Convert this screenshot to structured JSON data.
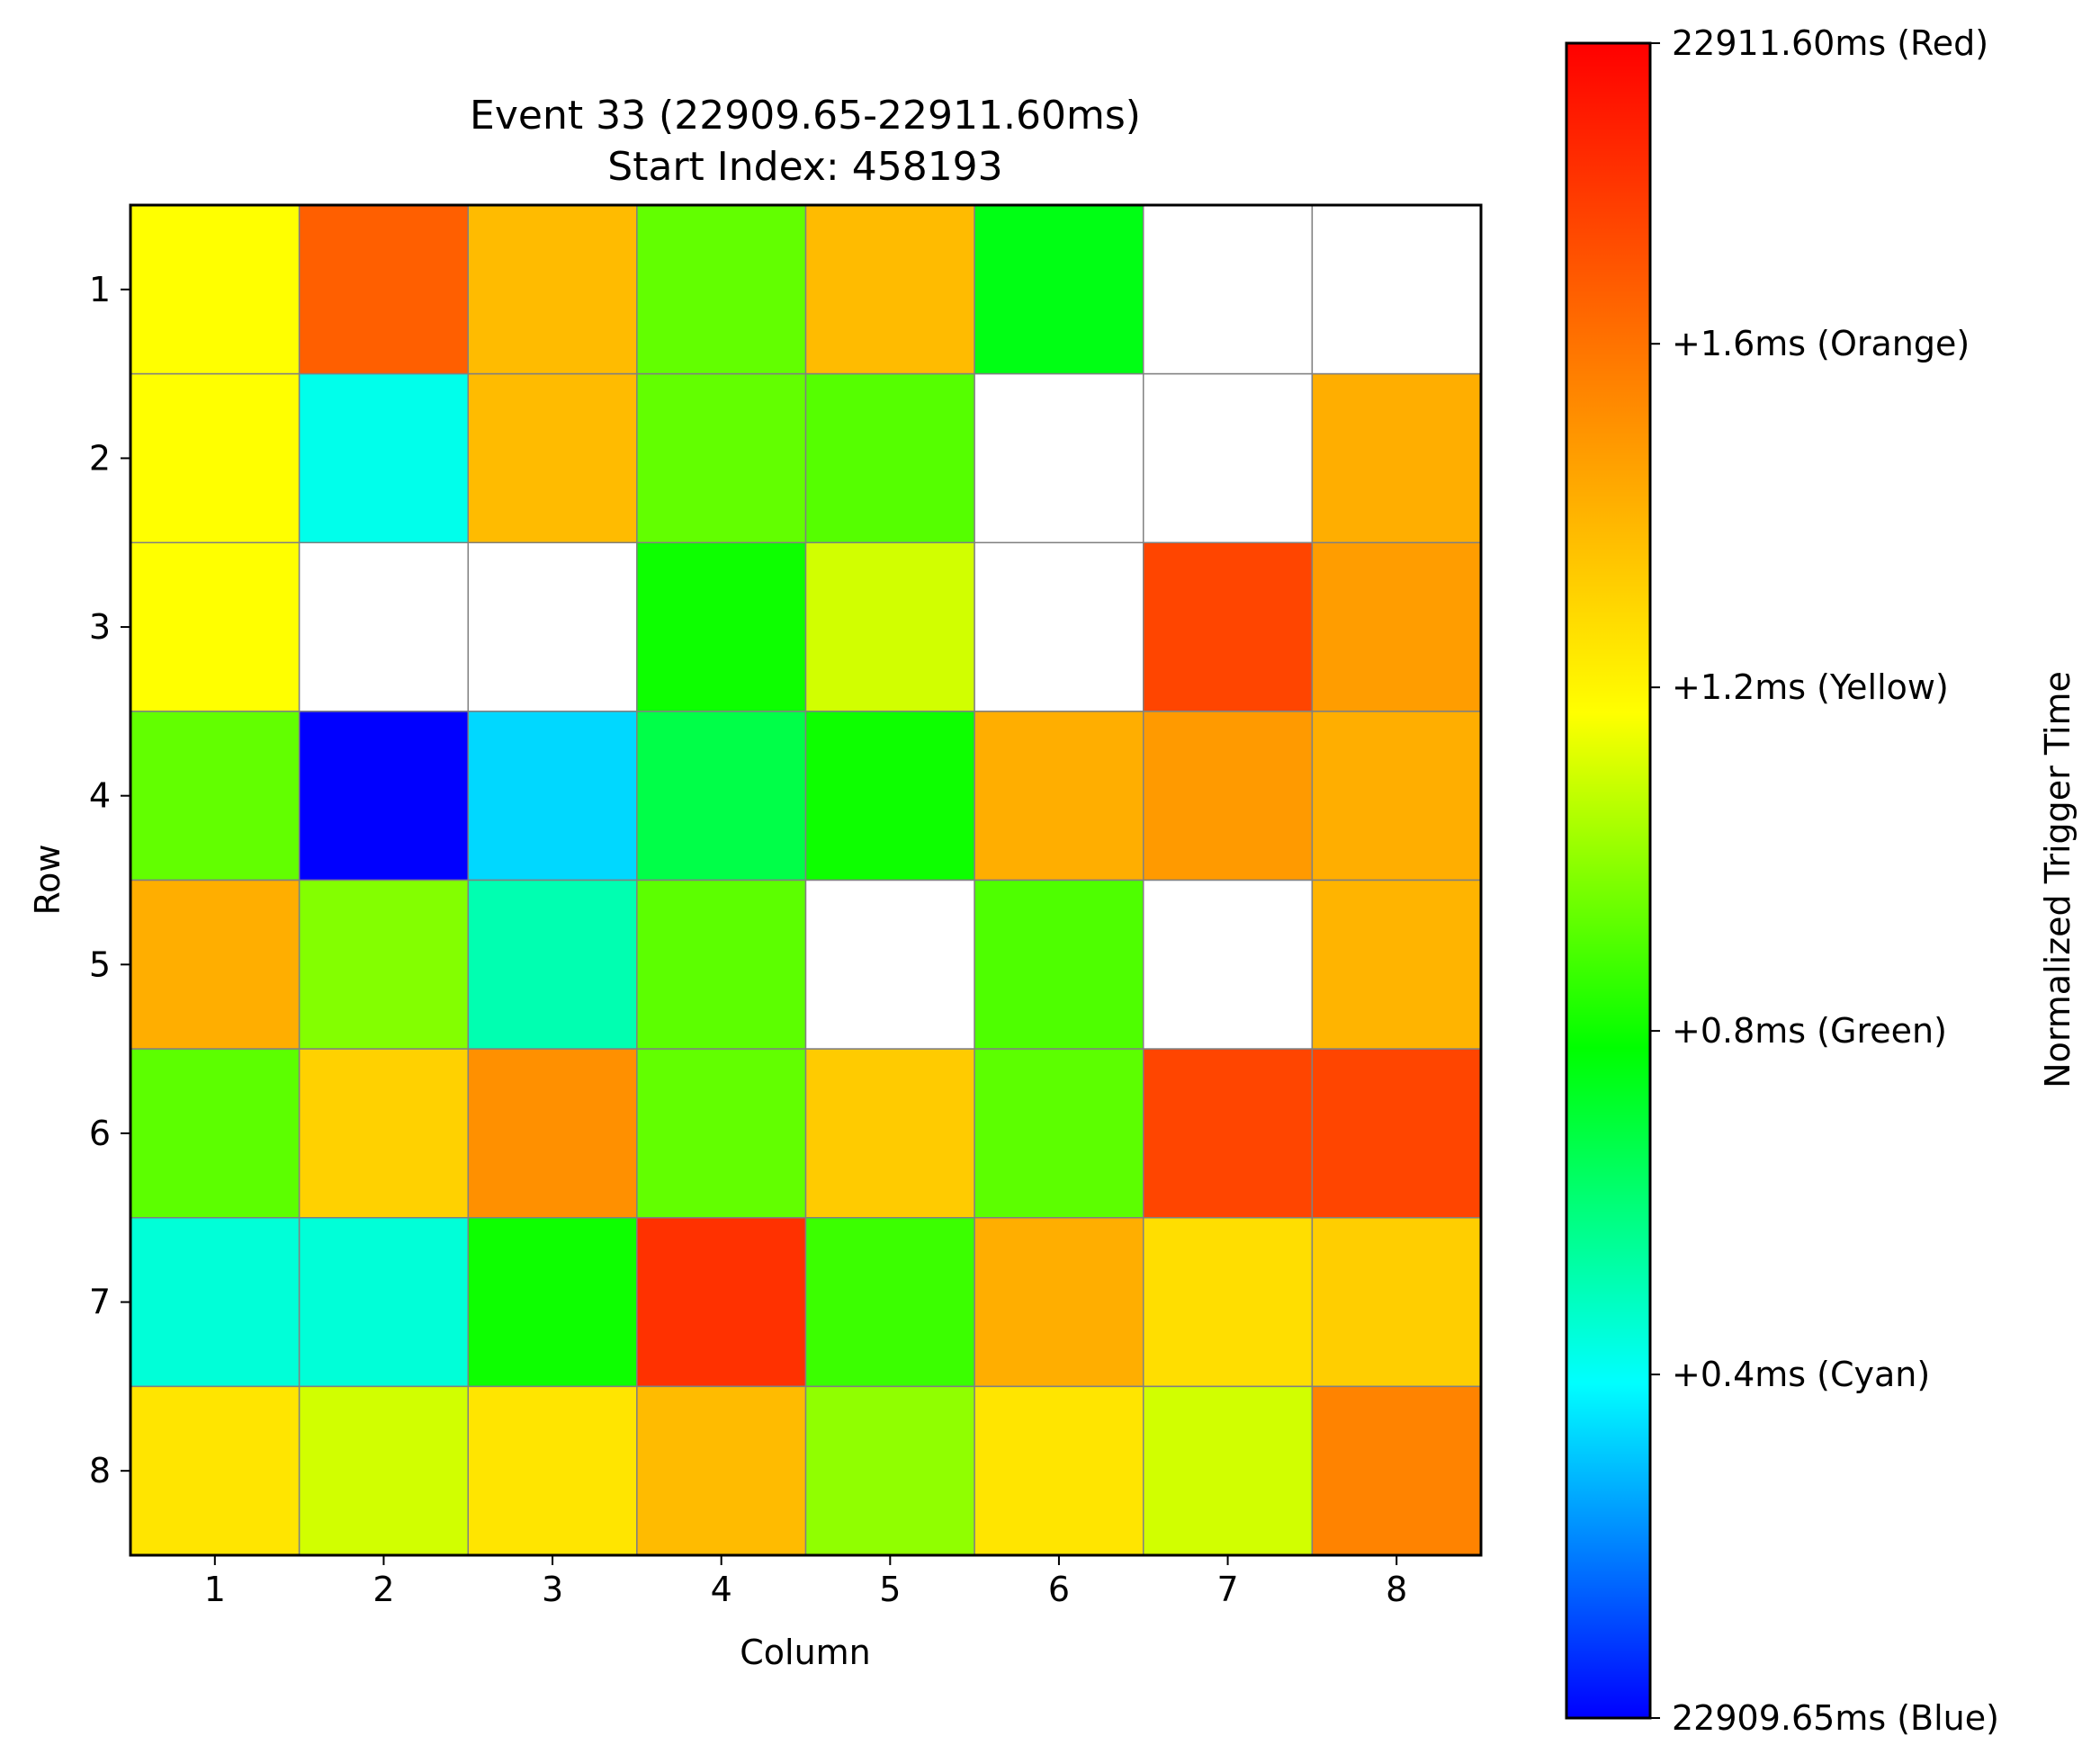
{
  "chart_data": {
    "type": "heatmap",
    "title": "Event 33 (22909.65-22911.60ms)",
    "subtitle": "Start Index: 458193",
    "xlabel": "Column",
    "ylabel": "Row",
    "x_ticks": [
      "1",
      "2",
      "3",
      "4",
      "5",
      "6",
      "7",
      "8"
    ],
    "y_ticks": [
      "1",
      "2",
      "3",
      "4",
      "5",
      "6",
      "7",
      "8"
    ],
    "value_range": [
      22909.65,
      22911.6
    ],
    "values_note_unit": "ms offset from 22909.65ms",
    "empty_cell_color": "#ffffff",
    "grid_line_color": "#808080",
    "values": [
      [
        1.17,
        1.66,
        1.38,
        0.93,
        1.38,
        0.75,
        null,
        null
      ],
      [
        1.17,
        0.42,
        1.38,
        0.93,
        0.91,
        null,
        null,
        1.42
      ],
      [
        1.17,
        null,
        null,
        0.8,
        1.1,
        null,
        1.74,
        1.47
      ],
      [
        0.93,
        0.0,
        0.33,
        0.67,
        0.8,
        1.42,
        1.48,
        1.42
      ],
      [
        1.42,
        0.98,
        0.51,
        0.92,
        null,
        0.9,
        null,
        1.4
      ],
      [
        0.92,
        1.31,
        1.51,
        0.93,
        1.33,
        0.92,
        1.74,
        1.74
      ],
      [
        0.45,
        0.45,
        0.8,
        1.8,
        0.87,
        1.42,
        1.27,
        1.32
      ],
      [
        1.25,
        1.1,
        1.25,
        1.38,
        1.0,
        1.25,
        1.1,
        1.55
      ]
    ],
    "colorbar": {
      "label": "Normalized Trigger Time",
      "colormap": [
        "#0000ff",
        "#00ffff",
        "#00ff00",
        "#ffff00",
        "#ff8000",
        "#ff0000"
      ],
      "ticks": [
        {
          "value": 0.0,
          "label": "22909.65ms (Blue)"
        },
        {
          "value": 0.4,
          "label": "+0.4ms (Cyan)"
        },
        {
          "value": 0.8,
          "label": "+0.8ms (Green)"
        },
        {
          "value": 1.2,
          "label": "+1.2ms (Yellow)"
        },
        {
          "value": 1.6,
          "label": "+1.6ms (Orange)"
        },
        {
          "value": 1.95,
          "label": "22911.60ms (Red)"
        }
      ]
    }
  }
}
